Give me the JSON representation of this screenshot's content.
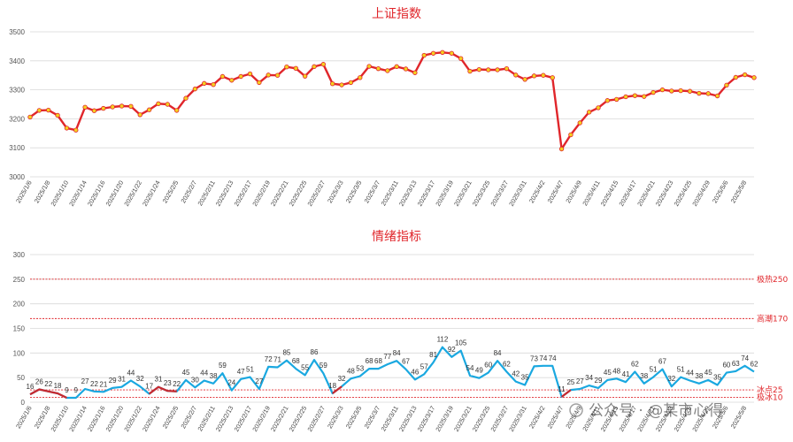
{
  "chart_data": [
    {
      "type": "line",
      "title": "上证指数",
      "ylim": [
        3000,
        3500
      ],
      "yticks": [
        3000,
        3100,
        3200,
        3300,
        3400,
        3500
      ],
      "grid": "horizontal",
      "series_color": "#e0262b",
      "marker_color": "#f5d020",
      "x": [
        "2025/1/6",
        "2025/1/7",
        "2025/1/8",
        "2025/1/9",
        "2025/1/10",
        "2025/1/13",
        "2025/1/14",
        "2025/1/15",
        "2025/1/16",
        "2025/1/17",
        "2025/1/20",
        "2025/1/21",
        "2025/1/22",
        "2025/1/23",
        "2025/1/24",
        "2025/1/27",
        "2025/2/5",
        "2025/2/6",
        "2025/2/7",
        "2025/2/10",
        "2025/2/11",
        "2025/2/12",
        "2025/2/13",
        "2025/2/14",
        "2025/2/17",
        "2025/2/18",
        "2025/2/19",
        "2025/2/20",
        "2025/2/21",
        "2025/2/24",
        "2025/2/25",
        "2025/2/26",
        "2025/2/27",
        "2025/2/28",
        "2025/3/3",
        "2025/3/4",
        "2025/3/5",
        "2025/3/6",
        "2025/3/7",
        "2025/3/10",
        "2025/3/11",
        "2025/3/12",
        "2025/3/13",
        "2025/3/14",
        "2025/3/17",
        "2025/3/18",
        "2025/3/19",
        "2025/3/20",
        "2025/3/21",
        "2025/3/24",
        "2025/3/25",
        "2025/3/26",
        "2025/3/27",
        "2025/3/28",
        "2025/3/31",
        "2025/4/1",
        "2025/4/2",
        "2025/4/3",
        "2025/4/7",
        "2025/4/8",
        "2025/4/9",
        "2025/4/10",
        "2025/4/11",
        "2025/4/14",
        "2025/4/15",
        "2025/4/16",
        "2025/4/17",
        "2025/4/18",
        "2025/4/21",
        "2025/4/22",
        "2025/4/23",
        "2025/4/24",
        "2025/4/25",
        "2025/4/28",
        "2025/4/29",
        "2025/4/30",
        "2025/5/6",
        "2025/5/7",
        "2025/5/8",
        "2025/5/9"
      ],
      "xtick_labels": [
        "2025/1/6",
        "2025/1/8",
        "2025/1/10",
        "2025/1/14",
        "2025/1/16",
        "2025/1/20",
        "2025/1/22",
        "2025/1/24",
        "2025/2/5",
        "2025/2/7",
        "2025/2/11",
        "2025/2/13",
        "2025/2/17",
        "2025/2/19",
        "2025/2/21",
        "2025/2/25",
        "2025/2/27",
        "2025/3/3",
        "2025/3/5",
        "2025/3/7",
        "2025/3/11",
        "2025/3/13",
        "2025/3/17",
        "2025/3/19",
        "2025/3/21",
        "2025/3/25",
        "2025/3/27",
        "2025/3/31",
        "2025/4/2",
        "2025/4/7",
        "2025/4/9",
        "2025/4/11",
        "2025/4/15",
        "2025/4/17",
        "2025/4/21",
        "2025/4/23",
        "2025/4/25",
        "2025/4/29",
        "2025/5/6",
        "2025/5/8"
      ],
      "series": [
        {
          "values": [
            3206,
            3229,
            3230,
            3212,
            3168,
            3161,
            3240,
            3228,
            3236,
            3241,
            3244,
            3243,
            3214,
            3231,
            3252,
            3250,
            3229,
            3271,
            3303,
            3322,
            3318,
            3346,
            3333,
            3346,
            3355,
            3325,
            3351,
            3350,
            3379,
            3374,
            3347,
            3380,
            3388,
            3321,
            3317,
            3325,
            3342,
            3381,
            3373,
            3366,
            3380,
            3372,
            3359,
            3419,
            3426,
            3429,
            3426,
            3408,
            3364,
            3370,
            3369,
            3369,
            3373,
            3351,
            3336,
            3348,
            3350,
            3342,
            3096,
            3145,
            3186,
            3223,
            3238,
            3263,
            3267,
            3276,
            3280,
            3277,
            3291,
            3300,
            3296,
            3297,
            3295,
            3288,
            3287,
            3279,
            3316,
            3343,
            3352,
            3342
          ]
        }
      ]
    },
    {
      "type": "line",
      "title": "情绪指标",
      "ylim": [
        0,
        300
      ],
      "yticks": [
        0,
        50,
        100,
        150,
        200,
        250,
        300
      ],
      "grid": "horizontal",
      "series_color": "#1aa8e0",
      "x": [
        "2025/1/6",
        "2025/1/7",
        "2025/1/8",
        "2025/1/9",
        "2025/1/10",
        "2025/1/13",
        "2025/1/14",
        "2025/1/15",
        "2025/1/16",
        "2025/1/17",
        "2025/1/20",
        "2025/1/21",
        "2025/1/22",
        "2025/1/23",
        "2025/1/24",
        "2025/1/27",
        "2025/2/5",
        "2025/2/6",
        "2025/2/7",
        "2025/2/10",
        "2025/2/11",
        "2025/2/12",
        "2025/2/13",
        "2025/2/14",
        "2025/2/17",
        "2025/2/18",
        "2025/2/19",
        "2025/2/20",
        "2025/2/21",
        "2025/2/24",
        "2025/2/25",
        "2025/2/26",
        "2025/2/27",
        "2025/2/28",
        "2025/3/3",
        "2025/3/4",
        "2025/3/5",
        "2025/3/6",
        "2025/3/7",
        "2025/3/10",
        "2025/3/11",
        "2025/3/12",
        "2025/3/13",
        "2025/3/14",
        "2025/3/17",
        "2025/3/18",
        "2025/3/19",
        "2025/3/20",
        "2025/3/21",
        "2025/3/24",
        "2025/3/25",
        "2025/3/26",
        "2025/3/27",
        "2025/3/28",
        "2025/3/31",
        "2025/4/1",
        "2025/4/2",
        "2025/4/3",
        "2025/4/7",
        "2025/4/8",
        "2025/4/9",
        "2025/4/10",
        "2025/4/11",
        "2025/4/14",
        "2025/4/15",
        "2025/4/16",
        "2025/4/17",
        "2025/4/18",
        "2025/4/21",
        "2025/4/22",
        "2025/4/23",
        "2025/4/24",
        "2025/4/25",
        "2025/4/28",
        "2025/4/29",
        "2025/4/30",
        "2025/5/6",
        "2025/5/7",
        "2025/5/8",
        "2025/5/9"
      ],
      "xtick_labels": [
        "2025/1/6",
        "2025/1/8",
        "2025/1/10",
        "2025/1/14",
        "2025/1/16",
        "2025/1/20",
        "2025/1/22",
        "2025/1/24",
        "2025/2/5",
        "2025/2/7",
        "2025/2/11",
        "2025/2/13",
        "2025/2/17",
        "2025/2/19",
        "2025/2/21",
        "2025/2/25",
        "2025/2/27",
        "2025/3/3",
        "2025/3/5",
        "2025/3/7",
        "2025/3/11",
        "2025/3/13",
        "2025/3/17",
        "2025/3/19",
        "2025/3/21",
        "2025/3/25",
        "2025/3/27",
        "2025/3/31",
        "2025/4/2",
        "2025/4/7",
        "2025/4/9",
        "2025/4/11",
        "2025/4/15",
        "2025/4/17",
        "2025/4/21",
        "2025/4/23",
        "2025/4/25",
        "2025/4/29",
        "2025/5/6",
        "2025/5/8"
      ],
      "series": [
        {
          "values": [
            16,
            26,
            22,
            18,
            9,
            9,
            27,
            22,
            21,
            29,
            31,
            44,
            32,
            17,
            31,
            23,
            22,
            45,
            30,
            44,
            38,
            59,
            24,
            47,
            51,
            27,
            72,
            71,
            85,
            68,
            55,
            86,
            59,
            18,
            32,
            48,
            53,
            68,
            68,
            77,
            84,
            67,
            46,
            57,
            81,
            112,
            92,
            105,
            54,
            49,
            60,
            84,
            62,
            42,
            35,
            73,
            74,
            74,
            11,
            25,
            27,
            34,
            29,
            45,
            48,
            41,
            62,
            38,
            51,
            67,
            32,
            51,
            44,
            38,
            45,
            35,
            60,
            63,
            74,
            62
          ],
          "low_segments": [
            [
              0,
              4
            ],
            [
              13,
              16
            ],
            [
              33,
              34
            ],
            [
              58,
              59
            ]
          ]
        }
      ],
      "low_segment_color": "#c8282e",
      "reference_lines": [
        {
          "label": "极热250",
          "value": 250
        },
        {
          "label": "高潮170",
          "value": 170
        },
        {
          "label": "冰点25",
          "value": 25
        },
        {
          "label": "极冰10",
          "value": 10
        }
      ]
    }
  ],
  "watermark": "公众号 · @某市心得"
}
